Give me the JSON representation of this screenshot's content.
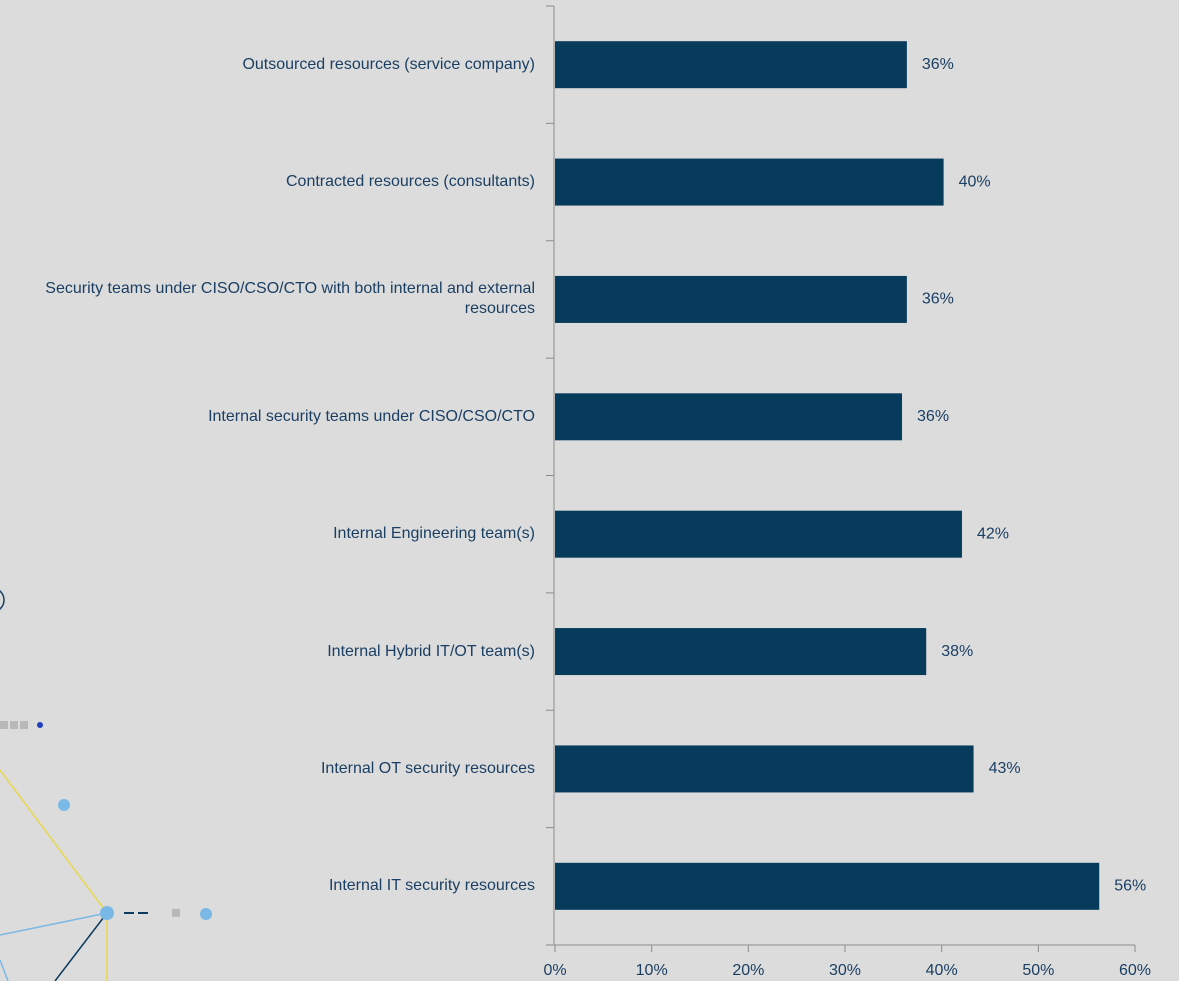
{
  "chart_data": {
    "type": "barh",
    "categories": [
      "Outsourced resources (service company)",
      "Contracted resources (consultants)",
      "Security teams under CISO/CSO/CTO with both internal and external resources",
      "Internal security teams under CISO/CSO/CTO",
      "Internal Engineering team(s)",
      "Internal Hybrid IT/OT team(s)",
      "Internal OT security resources",
      "Internal IT security resources"
    ],
    "values": [
      36.4,
      40.2,
      36.4,
      35.9,
      42.1,
      38.4,
      43.3,
      56.3
    ],
    "value_labels": [
      "36%",
      "40%",
      "36%",
      "36%",
      "42%",
      "38%",
      "43%",
      "56%"
    ],
    "color": "#073b5c",
    "xlim": [
      0,
      60
    ],
    "xticks": [
      {
        "value": 0,
        "label": "0%"
      },
      {
        "value": 10,
        "label": "10%"
      },
      {
        "value": 20,
        "label": "20%"
      },
      {
        "value": 30,
        "label": "30%"
      },
      {
        "value": 40,
        "label": "40%"
      },
      {
        "value": 50,
        "label": "50%"
      },
      {
        "value": 60,
        "label": "60%"
      }
    ]
  }
}
